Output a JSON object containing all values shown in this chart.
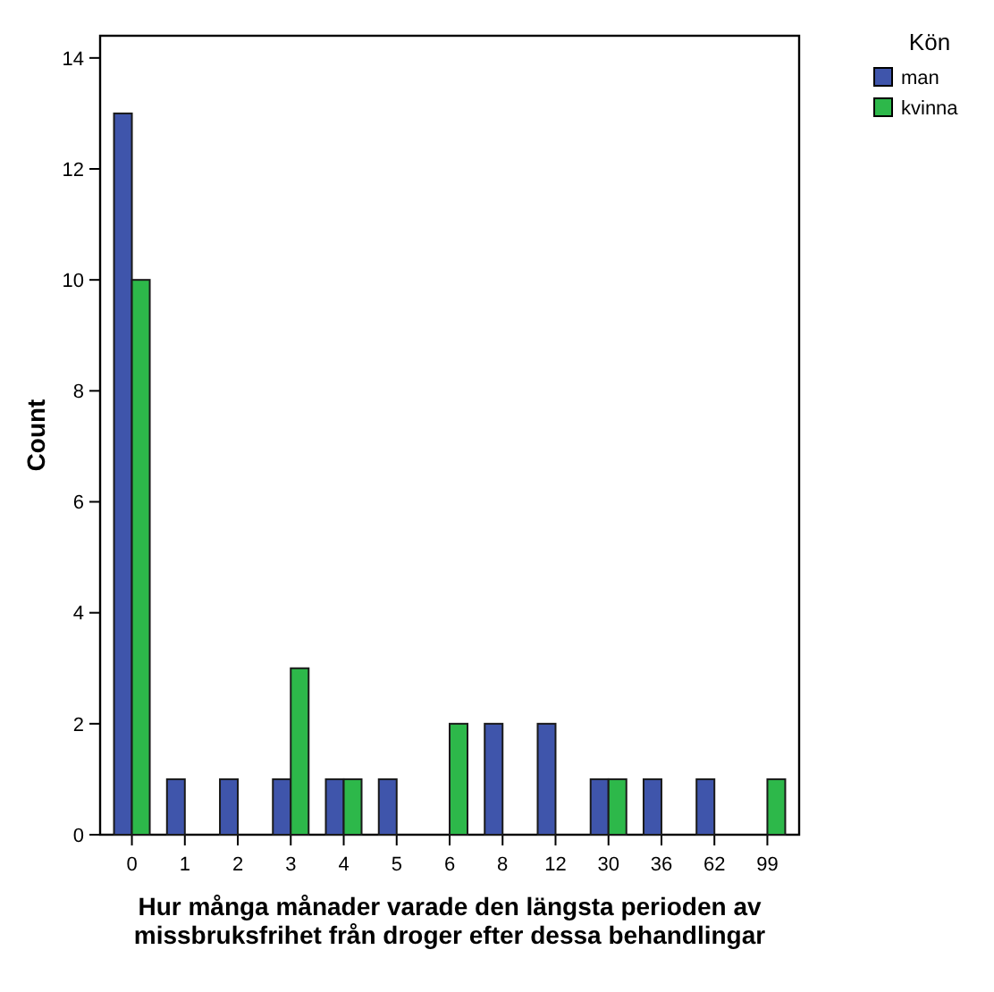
{
  "chart_data": {
    "type": "bar",
    "xlabel": "Hur många månader varade den längsta perioden av missbruksfrihet från droger efter dessa behandlingar",
    "ylabel": "Count",
    "legend_title": "Kön",
    "categories": [
      "0",
      "1",
      "2",
      "3",
      "4",
      "5",
      "6",
      "8",
      "12",
      "30",
      "36",
      "62",
      "99"
    ],
    "series": [
      {
        "name": "man",
        "color": "#3f55ab",
        "values": [
          13,
          1,
          1,
          1,
          1,
          1,
          0,
          2,
          2,
          1,
          1,
          1,
          0
        ]
      },
      {
        "name": "kvinna",
        "color": "#2db84a",
        "values": [
          10,
          0,
          0,
          3,
          1,
          0,
          2,
          0,
          0,
          1,
          0,
          0,
          1
        ]
      }
    ],
    "ylim": [
      0,
      14.4
    ],
    "yticks": [
      0,
      2,
      4,
      6,
      8,
      10,
      12,
      14
    ],
    "legend": "top right"
  }
}
